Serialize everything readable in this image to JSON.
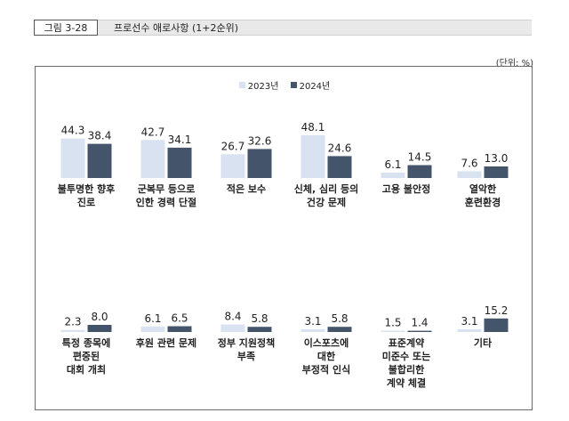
{
  "figure": {
    "label": "그림 3-28",
    "title": "프로선수 애로사항 (1+2순위)",
    "unit": "(단위: %)"
  },
  "colors": {
    "s2023": "#d9e2f0",
    "s2024": "#44546a"
  },
  "chart_data": {
    "type": "bar",
    "title": "프로선수 애로사항 (1+2순위)",
    "ylabel": "%",
    "ylim": [
      0,
      50
    ],
    "legend_position": "top-center",
    "series_names": [
      "2023년",
      "2024년"
    ],
    "panels": [
      {
        "categories": [
          "불투명한 향후 진로",
          "군복무 등으로 인한 경력 단절",
          "적은 보수",
          "신체, 심리 등의 건강 문제",
          "고용 불안정",
          "열악한 훈련환경"
        ],
        "labels": [
          [
            "불투명한 향후",
            "진로"
          ],
          [
            "군복무 등으로",
            "인한 경력 단절"
          ],
          [
            "적은 보수"
          ],
          [
            "신체, 심리 등의",
            "건강 문제"
          ],
          [
            "고용 불안정"
          ],
          [
            "열악한",
            "훈련환경"
          ]
        ],
        "series": [
          {
            "name": "2023년",
            "values": [
              44.3,
              42.7,
              26.7,
              48.1,
              6.1,
              7.6
            ]
          },
          {
            "name": "2024년",
            "values": [
              38.4,
              34.1,
              32.6,
              24.6,
              14.5,
              13.0
            ]
          }
        ]
      },
      {
        "categories": [
          "특정 종목에 편중된 대회 개최",
          "후원 관련 문제",
          "정부 지원정책 부족",
          "이스포츠에 대한 부정적 인식",
          "표준계약 미준수 또는 불합리한 계약 체결",
          "기타"
        ],
        "labels": [
          [
            "특정 종목에",
            "편중된",
            "대회 개최"
          ],
          [
            "후원 관련 문제"
          ],
          [
            "정부 지원정책",
            "부족"
          ],
          [
            "이스포츠에",
            "대한",
            "부정적 인식"
          ],
          [
            "표준계약",
            "미준수 또는",
            "불합리한",
            "계약 체결"
          ],
          [
            "기타"
          ]
        ],
        "series": [
          {
            "name": "2023년",
            "values": [
              2.3,
              6.1,
              8.4,
              3.1,
              1.5,
              3.1
            ]
          },
          {
            "name": "2024년",
            "values": [
              8.0,
              6.5,
              5.8,
              5.8,
              1.4,
              15.2
            ]
          }
        ]
      }
    ]
  }
}
